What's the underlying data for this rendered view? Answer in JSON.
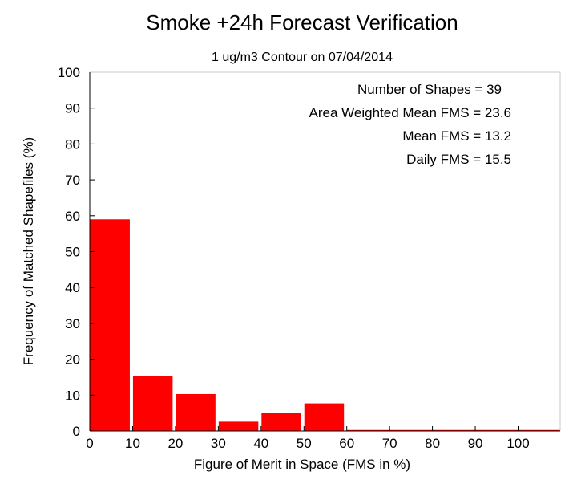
{
  "chart_data": {
    "type": "bar",
    "title": "Smoke +24h Forecast Verification",
    "subtitle": "1 ug/m3 Contour on 07/04/2014",
    "xlabel": "Figure of Merit in Space (FMS in %)",
    "ylabel": "Frequency of Matched Shapefiles (%)",
    "xlim": [
      0,
      110
    ],
    "ylim": [
      0,
      100
    ],
    "xticks": [
      "0",
      "10",
      "20",
      "30",
      "40",
      "50",
      "60",
      "70",
      "80",
      "90",
      "100"
    ],
    "yticks": [
      "0",
      "10",
      "20",
      "30",
      "40",
      "50",
      "60",
      "70",
      "80",
      "90",
      "100"
    ],
    "bins": [
      {
        "x0": 0,
        "x1": 10,
        "value": 59
      },
      {
        "x0": 10,
        "x1": 20,
        "value": 15.4
      },
      {
        "x0": 20,
        "x1": 30,
        "value": 10.3
      },
      {
        "x0": 30,
        "x1": 40,
        "value": 2.6
      },
      {
        "x0": 40,
        "x1": 50,
        "value": 5.1
      },
      {
        "x0": 50,
        "x1": 60,
        "value": 7.7
      },
      {
        "x0": 60,
        "x1": 70,
        "value": 0
      },
      {
        "x0": 70,
        "x1": 80,
        "value": 0
      },
      {
        "x0": 80,
        "x1": 90,
        "value": 0
      },
      {
        "x0": 90,
        "x1": 100,
        "value": 0
      },
      {
        "x0": 100,
        "x1": 110,
        "value": 0
      }
    ],
    "bar_color": "#ff0000",
    "grid": false,
    "legend": "none",
    "stats": [
      "Number of Shapes = 39",
      "Area Weighted Mean FMS = 23.6",
      "Mean FMS = 13.2",
      "Daily FMS = 15.5"
    ]
  }
}
